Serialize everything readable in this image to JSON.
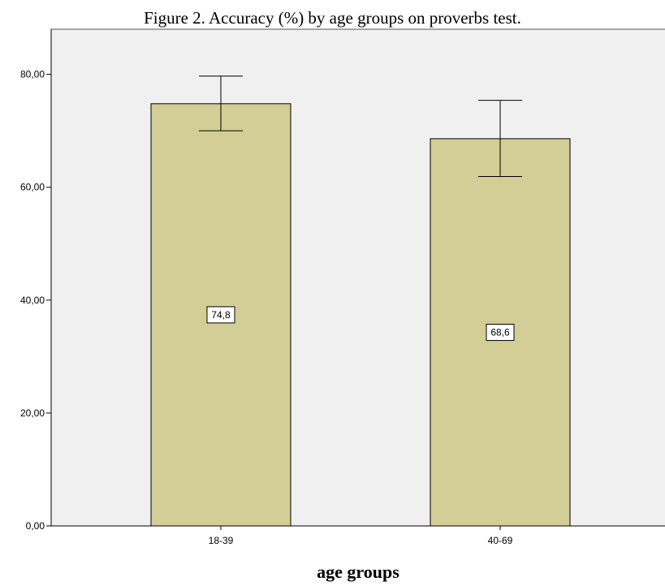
{
  "chart_data": {
    "type": "bar",
    "title": "Figure 2. Accuracy (%) by age groups on proverbs test.",
    "xlabel": "age groups",
    "ylabel": "",
    "categories": [
      "18-39",
      "40-69"
    ],
    "values": [
      74.8,
      68.6
    ],
    "data_labels": [
      "74,8",
      "68,6"
    ],
    "error_bars": [
      {
        "low": 70.0,
        "high": 79.7
      },
      {
        "low": 61.9,
        "high": 75.4
      }
    ],
    "ylim": [
      0,
      88
    ],
    "yticks": [
      0,
      20,
      40,
      60,
      80
    ],
    "ytick_labels": [
      "0,00",
      "20,00",
      "40,00",
      "60,00",
      "80,00"
    ],
    "grid": false,
    "legend": "none",
    "colors": {
      "bar_fill": "#d3cd96",
      "plot_background": "#f0f0f0",
      "axis": "#000000"
    }
  }
}
